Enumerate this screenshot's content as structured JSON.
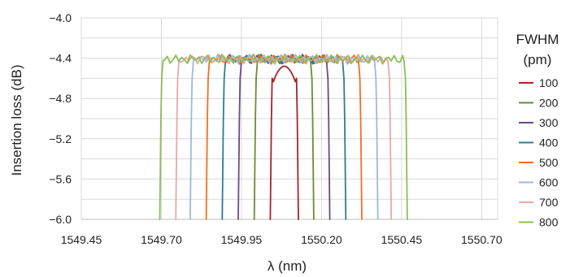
{
  "chart_data": {
    "type": "line",
    "xlabel": "λ (nm)",
    "ylabel": "Insertion loss (dB)",
    "xlim": [
      1549.45,
      1550.75
    ],
    "ylim": [
      -6.0,
      -4.0
    ],
    "xticks": [
      1549.45,
      1549.7,
      1549.95,
      1550.2,
      1550.45,
      1550.7
    ],
    "xtick_labels": [
      "1549.45",
      "1549.70",
      "1549.95",
      "1550.20",
      "1550.45",
      "1550.70"
    ],
    "yticks": [
      -4.0,
      -4.4,
      -4.8,
      -5.2,
      -5.6,
      -6.0
    ],
    "ytick_labels": [
      "−4.0",
      "−4.4",
      "−4.8",
      "−5.2",
      "−5.6",
      "−6.0"
    ],
    "grid": true,
    "legend": {
      "title_line1": "FWHM",
      "title_line2": "(pm)",
      "placement": "right"
    },
    "center": 1550.082,
    "series": [
      {
        "name": "100",
        "color": "#a3262b",
        "fwhm_pm": 100,
        "left": 1550.04,
        "right": 1550.128,
        "top": -4.48
      },
      {
        "name": "200",
        "color": "#6f8a34",
        "fwhm_pm": 200,
        "left": 1549.99,
        "right": 1550.176,
        "top": -4.4
      },
      {
        "name": "300",
        "color": "#6b4a86",
        "fwhm_pm": 300,
        "left": 1549.94,
        "right": 1550.226,
        "top": -4.4
      },
      {
        "name": "400",
        "color": "#2f7d8f",
        "fwhm_pm": 400,
        "left": 1549.89,
        "right": 1550.276,
        "top": -4.4
      },
      {
        "name": "500",
        "color": "#f07021",
        "fwhm_pm": 500,
        "left": 1549.84,
        "right": 1550.326,
        "top": -4.4
      },
      {
        "name": "600",
        "color": "#9fb8dd",
        "fwhm_pm": 600,
        "left": 1549.79,
        "right": 1550.376,
        "top": -4.4
      },
      {
        "name": "700",
        "color": "#e5a9a8",
        "fwhm_pm": 700,
        "left": 1549.745,
        "right": 1550.418,
        "top": -4.4
      },
      {
        "name": "800",
        "color": "#8dbd57",
        "fwhm_pm": 800,
        "left": 1549.695,
        "right": 1550.468,
        "top": -4.4
      }
    ]
  }
}
